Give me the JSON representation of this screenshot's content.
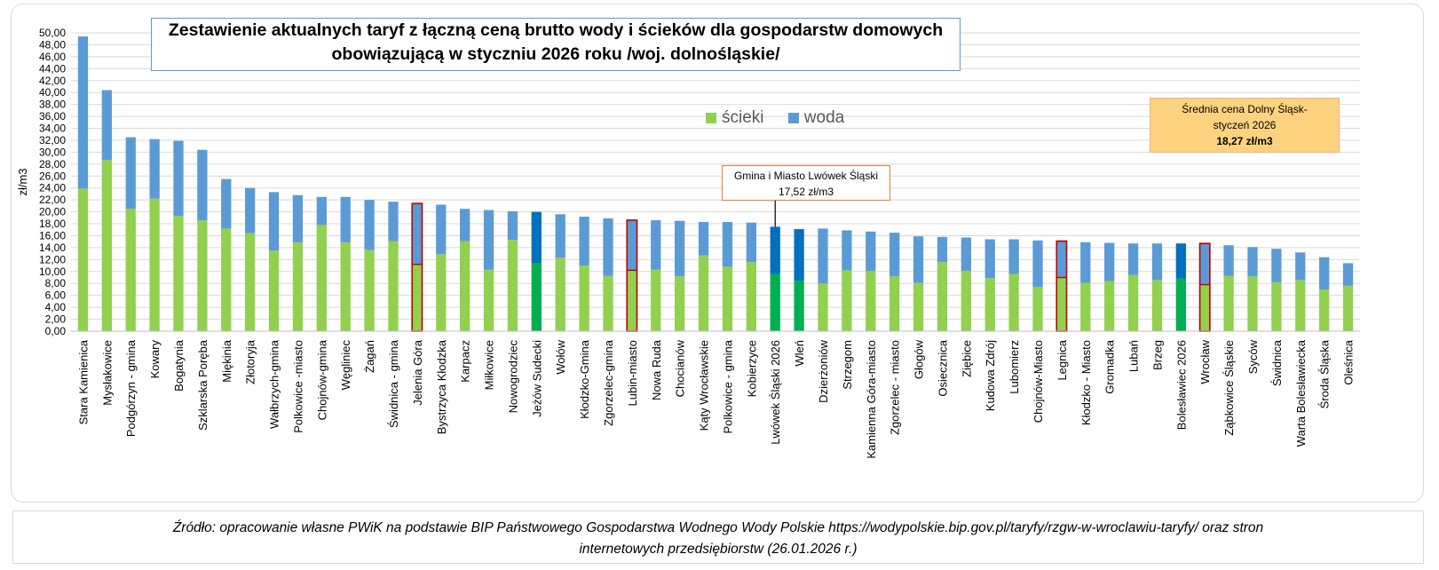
{
  "chart_data": {
    "type": "bar",
    "stacked": true,
    "title_line1": "Zestawienie aktualnych taryf  z łączną ceną brutto wody i ścieków dla gospodarstw domowych",
    "title_line2": "obowiązującą w styczniu 2026 roku  /woj. dolnośląskie/",
    "ylabel": "zł/m3",
    "ylim": [
      0,
      50
    ],
    "ytick_step": 2,
    "ytick_labels": [
      "0,00",
      "2,00",
      "4,00",
      "6,00",
      "8,00",
      "10,00",
      "12,00",
      "14,00",
      "16,00",
      "18,00",
      "20,00",
      "22,00",
      "24,00",
      "26,00",
      "28,00",
      "30,00",
      "32,00",
      "34,00",
      "36,00",
      "38,00",
      "40,00",
      "42,00",
      "44,00",
      "46,00",
      "48,00",
      "50,00"
    ],
    "grid": true,
    "legend_position": "top-center",
    "categories": [
      "Stara Kamienica",
      "Mysłakowice",
      "Podgórzyn - gmina",
      "Kowary",
      "Bogatynia",
      "Szklarska Poręba",
      "Miękinia",
      "Złotoryja",
      "Wałbrzych-gmina",
      "Polkowice -miasto",
      "Chojnów-gmina",
      "Węgliniec",
      "Żagań",
      "Świdnica - gmina",
      "Jelenia Góra",
      "Bystrzyca Kłodzka",
      "Karpacz",
      "Miłkowice",
      "Nowogrodziec",
      "Jeżów Sudecki",
      "Wołów",
      "Kłodzko-Gmina",
      "Zgorzelec-gmina",
      "Lubin-miasto",
      "Nowa Ruda",
      "Chocianów",
      "Kąty Wrocławskie",
      "Polkowice - gmina",
      "Kobierzyce",
      "Lwówek Śląski 2026",
      "Wleń",
      "Dzierżoniów",
      "Strzegom",
      "Kamienna Góra-miasto",
      "Zgorzelec - miasto",
      "Głogów",
      "Osiecznica",
      "Ziębice",
      "Kudowa Zdrój",
      "Lubomierz",
      "Chojnów-Miasto",
      "Legnica",
      "Kłodzko - Miasto",
      "Gromadka",
      "Lubań",
      "Brzeg",
      "Bolesławiec 2026",
      "Wrocław",
      "Ząbkowice Śląskie",
      "Syców",
      "Świdnica",
      "Warta Bolesławiecka",
      "Środa Śląska",
      "Oleśnica"
    ],
    "series": [
      {
        "name": "ścieki",
        "color": "#92d050",
        "values": [
          23.9,
          28.7,
          20.5,
          22.2,
          19.3,
          18.6,
          17.2,
          16.4,
          13.5,
          14.9,
          17.8,
          14.9,
          13.6,
          15.1,
          11.2,
          12.9,
          15.1,
          10.3,
          15.3,
          11.4,
          12.3,
          11.0,
          9.3,
          10.2,
          10.3,
          9.2,
          12.7,
          10.8,
          11.6,
          9.6,
          8.5,
          8.0,
          10.2,
          10.1,
          9.2,
          8.1,
          11.6,
          10.1,
          8.9,
          9.6,
          7.4,
          9.0,
          8.1,
          8.4,
          9.4,
          8.6,
          8.8,
          7.8,
          9.3,
          9.2,
          8.2,
          8.6,
          7.0,
          7.6
        ]
      },
      {
        "name": "woda",
        "color": "#5b9bd5",
        "values": [
          25.5,
          11.7,
          12.0,
          10.0,
          12.6,
          11.8,
          8.3,
          7.6,
          9.8,
          7.9,
          4.7,
          7.6,
          8.4,
          6.6,
          10.2,
          8.3,
          5.4,
          10.0,
          4.8,
          8.6,
          7.3,
          8.2,
          9.6,
          8.4,
          8.3,
          9.3,
          5.6,
          7.5,
          6.6,
          7.9,
          8.6,
          9.2,
          6.7,
          6.6,
          7.3,
          7.8,
          4.2,
          5.6,
          6.5,
          5.8,
          7.8,
          6.1,
          6.8,
          6.4,
          5.3,
          6.1,
          5.9,
          6.9,
          5.1,
          4.9,
          5.6,
          4.6,
          5.4,
          3.8
        ]
      }
    ],
    "highlight_dark": [
      "Jeżów Sudecki",
      "Lwówek Śląski 2026",
      "Wleń",
      "Bolesławiec 2026"
    ],
    "highlight_dark_colors": {
      "ścieki": "#00b050",
      "woda": "#0070c0"
    },
    "highlight_outlined": [
      "Jelenia Góra",
      "Lubin-miasto",
      "Legnica",
      "Wrocław"
    ],
    "outline_color": "#c00000"
  },
  "annotations": {
    "avg_line1": "Średnia cena Dolny Śląsk-",
    "avg_line2": "styczeń 2026",
    "avg_value": "18,27 zł/m3",
    "lwowek_line1": "Gmina i Miasto Lwówek Śląski",
    "lwowek_line2": "17,52 zł/m3"
  },
  "legend": {
    "sewage": "ścieki",
    "water": "woda"
  },
  "source": {
    "line1": "Źródło:  opracowanie własne PWiK na podstawie BIP Państwowego Gospodarstwa Wodnego Wody Polskie https://wodypolskie.bip.gov.pl/taryfy/rzgw-w-wroclawiu-taryfy/ oraz stron",
    "line2": "internetowych przedsiębiorstw (26.01.2026 r.)"
  }
}
